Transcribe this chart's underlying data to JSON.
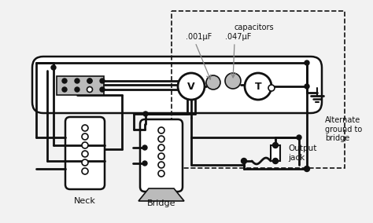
{
  "bg_color": "#f2f2f2",
  "line_color": "#111111",
  "gray_color": "#999999",
  "light_gray": "#bbbbbb",
  "mid_gray": "#888888",
  "white": "#ffffff",
  "labels": {
    "neck": "Neck",
    "bridge": "Bridge",
    "capacitors": "capacitors",
    "cap1": ".001μF",
    "cap2": ".047μF",
    "alt_ground": "Alternate\nground to\nbridge",
    "output_jack": "Output\njack",
    "V": "V",
    "T": "T"
  },
  "figsize": [
    4.74,
    2.84
  ],
  "dpi": 100
}
